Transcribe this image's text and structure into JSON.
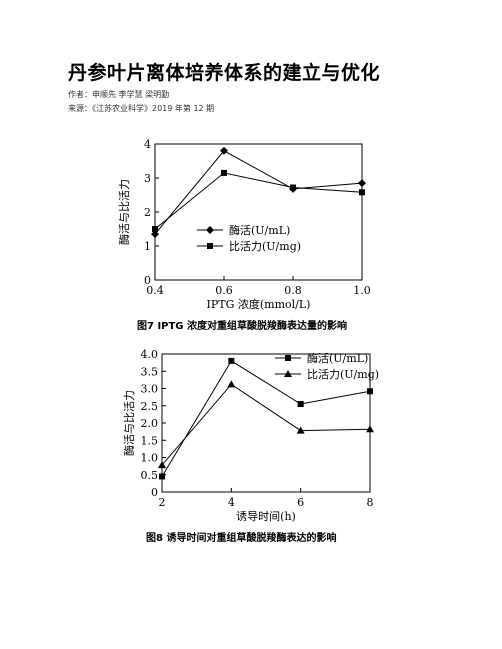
{
  "document": {
    "title": "丹参叶片离体培养体系的建立与优化",
    "authors": "作者：申顺先 李学慧 梁明勤",
    "source": "来源：《江苏农业科学》2019 年第 12 期"
  },
  "chart_data": [
    {
      "type": "line",
      "caption": "图7    IPTG 浓度对重组草酸脱羧酶表达量的影响",
      "xlabel": "IPTG 浓度(mmol/L)",
      "ylabel": "酶活与比活力",
      "x": [
        0.4,
        0.6,
        0.8,
        1.0
      ],
      "xticks": [
        "0.4",
        "0.6",
        "0.8",
        "1.0"
      ],
      "yticks": [
        "0",
        "1",
        "2",
        "3",
        "4"
      ],
      "xlim": [
        0.4,
        1.0
      ],
      "ylim": [
        0,
        4
      ],
      "grid": false,
      "legend": "center",
      "series": [
        {
          "name": "酶活(U/mL)",
          "marker": "diamond",
          "values": [
            1.35,
            3.8,
            2.68,
            2.85
          ]
        },
        {
          "name": "比活力(U/mg)",
          "marker": "square",
          "values": [
            1.5,
            3.15,
            2.72,
            2.58
          ]
        }
      ]
    },
    {
      "type": "line",
      "caption": "图8    诱导时间对重组草酸脱羧酶表达的影响",
      "xlabel": "诱导时间(h)",
      "ylabel": "酶活与比活力",
      "x": [
        2,
        4,
        6,
        8
      ],
      "xticks": [
        "2",
        "4",
        "6",
        "8"
      ],
      "yticks": [
        "0",
        "0.5",
        "1.0",
        "1.5",
        "2.0",
        "2.5",
        "3.0",
        "3.5",
        "4.0"
      ],
      "xlim": [
        2,
        8
      ],
      "ylim": [
        0,
        4
      ],
      "grid": false,
      "legend": "top-right",
      "series": [
        {
          "name": "酶活(U/mL)",
          "marker": "square",
          "values": [
            0.45,
            3.8,
            2.55,
            2.92
          ]
        },
        {
          "name": "比活力(U/mg)",
          "marker": "triangle",
          "values": [
            0.78,
            3.12,
            1.78,
            1.82
          ]
        }
      ]
    }
  ]
}
